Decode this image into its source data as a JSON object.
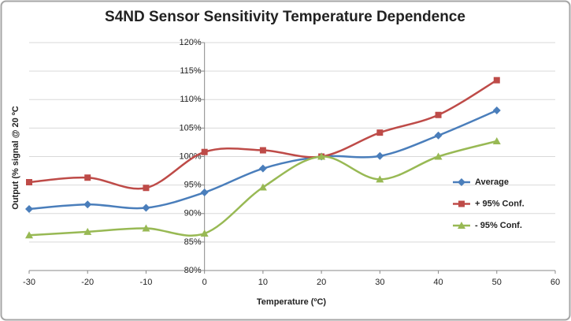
{
  "chart_data": {
    "type": "line",
    "title": "S4ND Sensor Sensitivity Temperature Dependence",
    "xlabel": "Temperature (ºC)",
    "ylabel": "Output (%  signal @ 20 ºC",
    "x": [
      -30,
      -20,
      -10,
      0,
      10,
      20,
      30,
      40,
      50
    ],
    "series": [
      {
        "name": "Average",
        "color": "#4a7ebb",
        "marker": "diamond",
        "values": [
          90.8,
          91.6,
          91.0,
          93.7,
          97.9,
          100.0,
          100.1,
          103.7,
          108.1
        ]
      },
      {
        "name": "+ 95% Conf.",
        "color": "#be4b48",
        "marker": "square",
        "values": [
          95.5,
          96.3,
          94.5,
          100.8,
          101.1,
          100.0,
          104.2,
          107.3,
          113.4
        ]
      },
      {
        "name": "- 95% Conf.",
        "color": "#98b954",
        "marker": "triangle",
        "values": [
          86.2,
          86.8,
          87.4,
          86.5,
          94.6,
          100.0,
          96.0,
          100.0,
          102.7
        ]
      }
    ],
    "xlim": [
      -30,
      60
    ],
    "xticks": [
      -30,
      -20,
      -10,
      0,
      10,
      20,
      30,
      40,
      50,
      60
    ],
    "ylim": [
      80,
      120
    ],
    "yticks": [
      {
        "value": 80,
        "label": "80%"
      },
      {
        "value": 85,
        "label": "85%"
      },
      {
        "value": 90,
        "label": "90%"
      },
      {
        "value": 95,
        "label": "95%"
      },
      {
        "value": 100,
        "label": "100%"
      },
      {
        "value": 105,
        "label": "105%"
      },
      {
        "value": 110,
        "label": "110%"
      },
      {
        "value": 115,
        "label": "115%"
      },
      {
        "value": 120,
        "label": "120%"
      }
    ],
    "grid": true,
    "smooth": true,
    "legend": "right"
  }
}
